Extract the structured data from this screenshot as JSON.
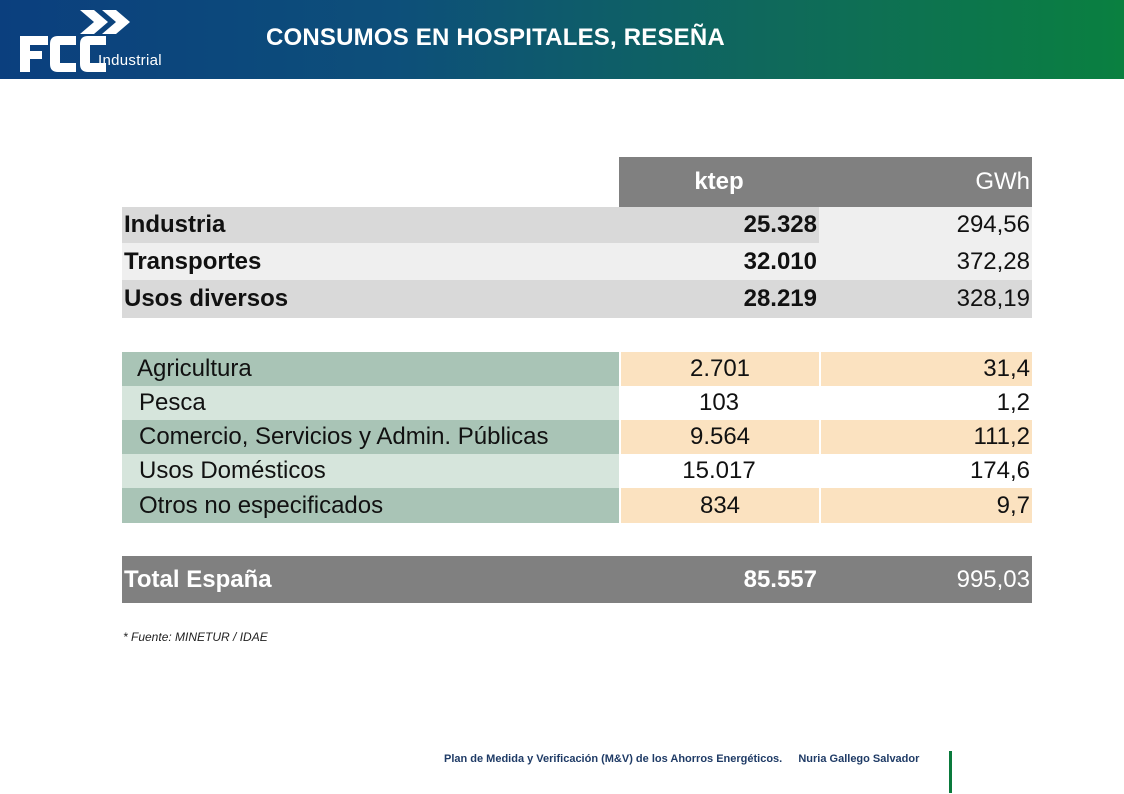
{
  "header": {
    "logo_name": "FCC",
    "logo_sub": "Industrial",
    "title": "CONSUMOS EN HOSPITALES, RESEÑA"
  },
  "table": {
    "col_ktep": "ktep",
    "col_gwh": "GWh",
    "sectors": [
      {
        "label": "Industria",
        "ktep": "25.328",
        "gwh": "294,56"
      },
      {
        "label": "Transportes",
        "ktep": "32.010",
        "gwh": "372,28"
      },
      {
        "label": "Usos diversos",
        "ktep": "28.219",
        "gwh": "328,19"
      }
    ],
    "breakdown": [
      {
        "label": "Agricultura",
        "ktep": "2.701",
        "gwh": "31,4"
      },
      {
        "label": "Pesca",
        "ktep": "103",
        "gwh": "1,2"
      },
      {
        "label": "Comercio, Servicios y Admin. Públicas",
        "ktep": "9.564",
        "gwh": "111,2"
      },
      {
        "label": "Usos Domésticos",
        "ktep": "15.017",
        "gwh": "174,6"
      },
      {
        "label": "Otros no especificados",
        "ktep": "834",
        "gwh": "9,7"
      }
    ],
    "total": {
      "label": "Total España",
      "ktep": "85.557",
      "gwh": "995,03"
    }
  },
  "source": "* Fuente: MINETUR / IDAE",
  "footer": {
    "text": "Plan de Medida y Verificación (M&V) de los Ahorros Energéticos.",
    "author": "Nuria Gallego Salvador"
  },
  "colors": {
    "header_start": "#0b3f7e",
    "header_end": "#0a8040",
    "table_header": "#808080",
    "green_dark": "#a9c4b6",
    "green_light": "#d6e5dc",
    "peach": "#fbe2c0",
    "gray_light": "#d9d9d9",
    "gray_lighter": "#efefef"
  }
}
